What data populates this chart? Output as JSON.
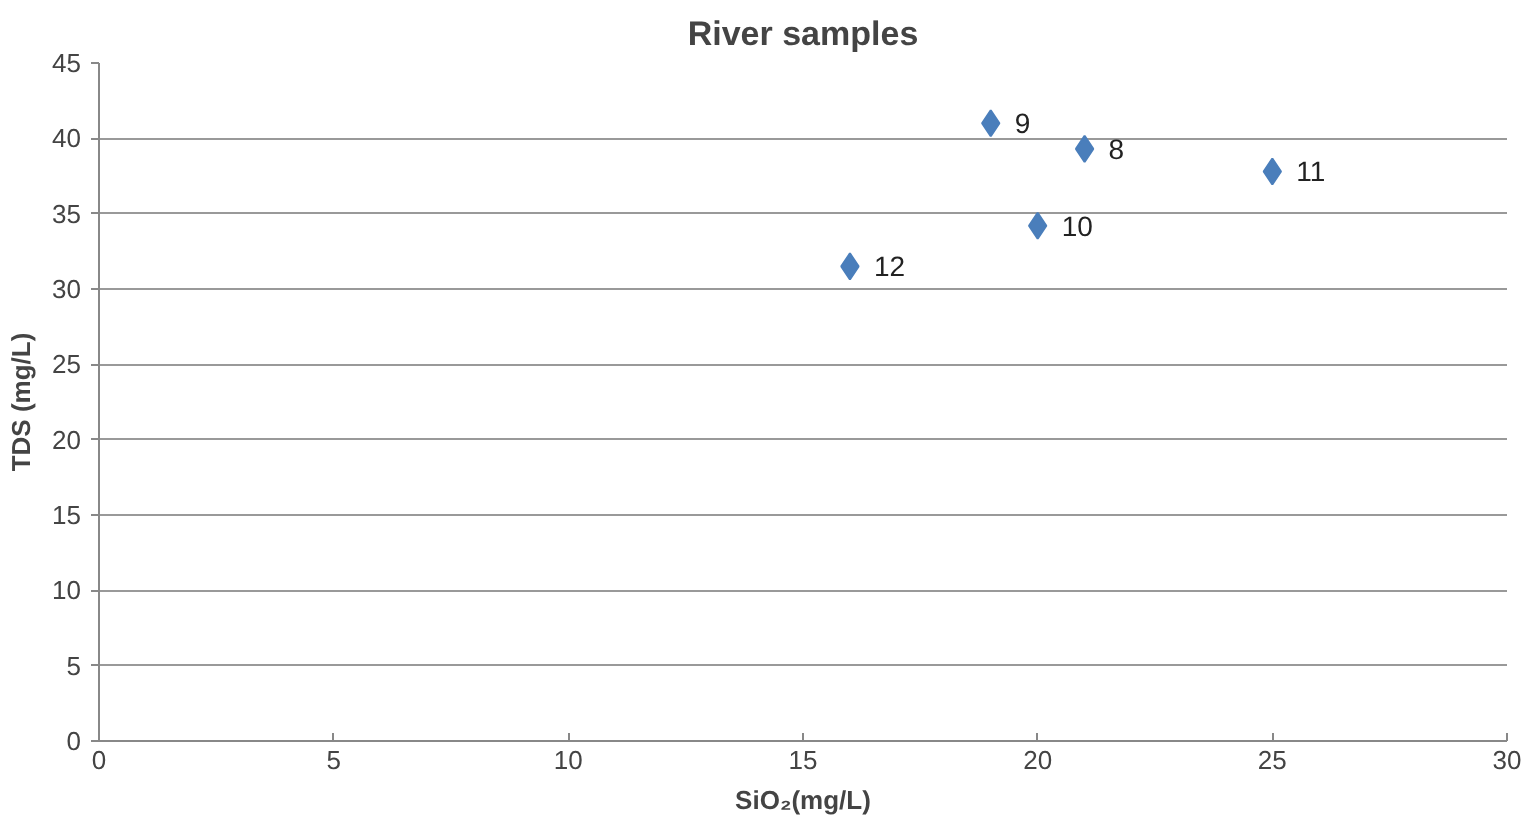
{
  "chart_data": {
    "type": "scatter",
    "title": "River samples",
    "xlabel": "SiO₂(mg/L)",
    "ylabel": "TDS (mg/L)",
    "x": [
      21,
      19,
      20,
      25,
      16
    ],
    "series": [
      {
        "color": "#4a7ebb",
        "values": [
          39.3,
          41,
          34.2,
          37.8,
          31.5
        ]
      }
    ],
    "annotations": [
      {
        "text": "8",
        "x": 21,
        "y": 39.3
      },
      {
        "text": "9",
        "x": 19,
        "y": 41
      },
      {
        "text": "10",
        "x": 20,
        "y": 34.2
      },
      {
        "text": "11",
        "x": 25,
        "y": 37.8
      },
      {
        "text": "12",
        "x": 16,
        "y": 31.5
      }
    ],
    "xlim": [
      0,
      30
    ],
    "xticks": [
      0,
      5,
      10,
      15,
      20,
      25,
      30
    ],
    "ylim": [
      0,
      45
    ],
    "yticks": [
      0,
      5,
      10,
      15,
      20,
      25,
      30,
      35,
      40,
      45
    ],
    "grid": "y",
    "marker": "diamond"
  }
}
